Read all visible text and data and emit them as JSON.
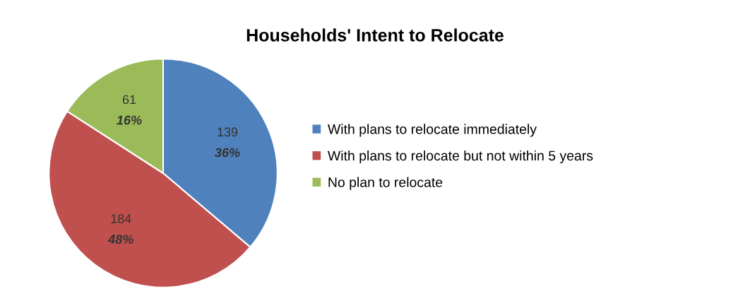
{
  "chart_data": {
    "type": "pie",
    "title": "Households' Intent to Relocate",
    "categories": [
      "With plans to relocate immediately",
      "With plans to relocate but not within 5 years",
      "No plan to relocate"
    ],
    "values": [
      139,
      184,
      61
    ],
    "colors": [
      "#4f81bd",
      "#c0504d",
      "#9bbb59"
    ],
    "value_labels": [
      "139\n36%",
      "184\n48%",
      "61\n16%"
    ],
    "legend": "right"
  }
}
